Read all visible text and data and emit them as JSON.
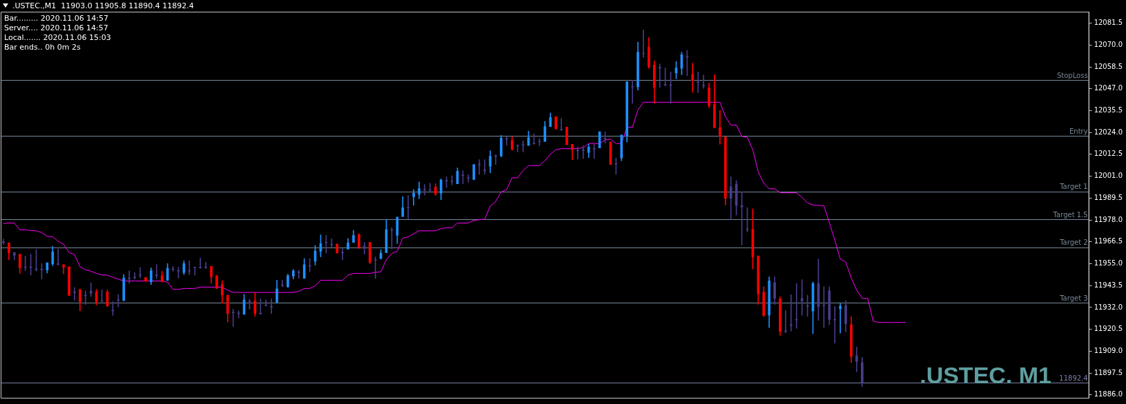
{
  "chart_data": {
    "type": "candlestick",
    "title": ".USTEC.,M1  11903.0 11905.8 11890.4 11892.4",
    "annotations": [
      "Bar......... 2020.11.06 14:57",
      "Server.... 2020.11.06 14:57",
      "Local....... 2020.11.06 15:03",
      "Bar ends.. 0h 0m 2s",
      ".USTEC. M1"
    ],
    "categories": [
      null,
      null,
      null,
      null,
      null,
      null,
      null,
      null,
      null,
      null,
      null,
      null,
      null,
      null,
      null,
      null,
      null,
      null,
      null,
      null,
      null,
      null,
      null,
      null,
      null,
      null,
      null,
      null,
      null,
      null,
      null,
      null,
      null,
      null,
      null,
      null,
      null,
      null,
      null,
      null,
      null,
      null,
      null,
      null,
      null,
      null,
      null,
      null,
      null,
      null,
      null,
      null,
      null,
      null,
      null,
      null,
      null,
      null,
      null,
      null,
      null,
      null,
      null,
      null,
      null,
      null,
      null,
      null,
      null,
      null,
      null,
      null,
      null,
      null,
      null,
      null,
      null,
      null,
      null,
      null,
      null,
      null,
      null,
      null,
      null,
      null,
      null,
      null,
      null,
      null,
      null,
      null,
      null,
      null,
      null,
      null,
      null,
      null,
      null,
      null,
      null,
      null,
      null,
      null,
      null,
      null,
      null,
      null,
      null,
      null,
      null,
      null,
      null,
      null,
      null,
      null,
      null,
      null,
      null,
      null,
      null,
      null,
      null,
      null,
      null,
      null,
      null,
      null,
      null,
      null,
      null,
      null,
      null,
      null,
      null,
      null,
      null,
      null,
      null,
      null,
      null,
      null,
      null,
      null,
      null,
      null,
      null,
      null,
      null,
      null,
      null,
      null,
      null,
      null,
      null,
      null,
      null,
      null,
      null,
      null,
      null,
      null,
      null,
      null,
      null,
      null,
      null,
      null,
      null,
      null,
      null,
      null,
      null,
      null,
      null,
      null,
      null,
      null,
      null,
      null,
      null,
      null,
      null,
      null,
      null,
      null,
      null,
      null,
      null,
      null,
      null,
      null,
      null,
      null,
      null,
      null,
      null,
      null,
      null
    ],
    "series": [
      {
        "type": "candlestick",
        "color": "#483d8b",
        "colors": [
          "#483d8b",
          "#ff0000",
          "#483d8b",
          "#ff0000",
          "#483d8b",
          "#483d8b",
          "#483d8b",
          "#483d8b",
          "#1e90ff",
          "#1e90ff",
          "#483d8b",
          "#ff0000",
          "#ff0000",
          "#483d8b",
          "#ff0000",
          "#483d8b",
          "#483d8b",
          "#ff0000",
          "#483d8b",
          "#ff0000",
          "#483d8b",
          "#483d8b",
          "#1e90ff",
          "#483d8b",
          "#483d8b",
          "#483d8b",
          "#ff0000",
          "#1e90ff",
          "#483d8b",
          "#ff0000",
          "#1e90ff",
          "#483d8b",
          "#483d8b",
          "#1e90ff",
          "#483d8b",
          "#483d8b",
          "#483d8b",
          "#483d8b",
          "#ff0000",
          "#ff0000",
          "#ff0000",
          "#ff0000",
          "#483d8b",
          "#483d8b",
          "#1e90ff",
          "#483d8b",
          "#ff0000",
          "#483d8b",
          "#483d8b",
          "#483d8b",
          "#1e90ff",
          "#483d8b",
          "#1e90ff",
          "#1e90ff",
          "#483d8b",
          "#1e90ff",
          "#483d8b",
          "#1e90ff",
          "#1e90ff",
          "#483d8b",
          "#483d8b",
          "#ff0000",
          "#483d8b",
          "#1e90ff",
          "#1e90ff",
          "#ff0000",
          "#483d8b",
          "#ff0000",
          "#483d8b",
          "#1e90ff",
          "#1e90ff",
          "#483d8b",
          "#1e90ff",
          "#1e90ff",
          "#483d8b",
          "#1e90ff",
          "#1e90ff",
          "#483d8b",
          "#483d8b",
          "#ff0000",
          "#1e90ff",
          "#483d8b",
          "#483d8b",
          "#1e90ff",
          "#483d8b",
          "#483d8b",
          "#1e90ff",
          "#483d8b",
          "#483d8b",
          "#1e90ff",
          "#483d8b",
          "#1e90ff",
          "#483d8b",
          "#ff0000",
          "#483d8b",
          "#483d8b",
          "#1e90ff",
          "#483d8b",
          "#483d8b",
          "#1e90ff",
          "#1e90ff",
          "#ff0000",
          "#483d8b",
          "#ff0000",
          "#ff0000",
          "#483d8b",
          "#483d8b",
          "#1e90ff",
          "#483d8b",
          "#1e90ff",
          "#483d8b",
          "#ff0000",
          "#483d8b",
          "#1e90ff",
          "#1e90ff",
          "#483d8b",
          "#1e90ff",
          "#483d8b",
          "#ff0000",
          "#ff0000",
          "#483d8b",
          "#483d8b",
          "#483d8b",
          "#1e90ff",
          "#1e90ff",
          "#483d8b",
          "#ff0000",
          "#483d8b",
          "#483d8b",
          "#ff0000",
          "#ff0000",
          "#ff0000",
          "#ff0000",
          "#483d8b",
          "#483d8b",
          "#483d8b",
          "#483d8b",
          "#ff0000",
          "#ff0000",
          "#ff0000",
          "#1e90ff",
          "#483d8b",
          "#ff0000",
          "#483d8b",
          "#483d8b",
          "#483d8b",
          "#483d8b",
          "#483d8b",
          "#1e90ff",
          "#483d8b",
          "#483d8b",
          "#483d8b",
          "#483d8b",
          "#1e90ff",
          "#483d8b",
          "#ff0000",
          "#483d8b",
          "#483d8b",
          null,
          null,
          null,
          null,
          null,
          null,
          null,
          null,
          null,
          null,
          null,
          null,
          null,
          null,
          null,
          null,
          null,
          null,
          null,
          null,
          null,
          null,
          null,
          null,
          null,
          null,
          null,
          null,
          null,
          null,
          null,
          null,
          null,
          null,
          null,
          null,
          null,
          null,
          null,
          null,
          null
        ],
        "ohlc": [
          [
            11966.5,
            11967.9,
            11965.2,
            11966.0
          ],
          [
            11965.9,
            11966.0,
            11957.1,
            11960.8
          ],
          [
            11960.9,
            11960.9,
            11957.1,
            11959.4
          ],
          [
            11960.0,
            11960.0,
            11949.9,
            11952.8
          ],
          [
            11953.2,
            11959.0,
            11951.4,
            11953.0
          ],
          [
            11953.0,
            11960.1,
            11949.0,
            11953.1
          ],
          [
            11952.0,
            11962.5,
            11951.1,
            11952.2
          ],
          [
            11952.0,
            11955.1,
            11946.9,
            11951.8
          ],
          [
            11951.7,
            11955.5,
            11950.1,
            11955.5
          ],
          [
            11954.9,
            11964.2,
            11954.0,
            11961.3
          ],
          [
            11955.0,
            11962.7,
            11954.3,
            11954.6
          ],
          [
            11954.4,
            11954.6,
            11949.7,
            11953.2
          ],
          [
            11953.4,
            11953.4,
            11938.3,
            11938.3
          ],
          [
            11939.8,
            11942.5,
            11935.7,
            11939.8
          ],
          [
            11941.5,
            11941.5,
            11930.2,
            11935.0
          ],
          [
            11938.1,
            11940.6,
            11933.6,
            11938.3
          ],
          [
            11939.5,
            11945.0,
            11937.7,
            11940.6
          ],
          [
            11940.1,
            11941.5,
            11933.3,
            11935.0
          ],
          [
            11935.5,
            11941.3,
            11935.0,
            11935.2
          ],
          [
            11940.1,
            11941.3,
            11932.5,
            11932.8
          ],
          [
            11930.5,
            11935.1,
            11927.8,
            11930.2
          ],
          [
            11935.7,
            11938.8,
            11932.2,
            11935.9
          ],
          [
            11935.6,
            11949.3,
            11935.6,
            11947.5
          ],
          [
            11947.1,
            11951.3,
            11944.7,
            11947.3
          ],
          [
            11947.6,
            11950.4,
            11947.0,
            11947.8
          ],
          [
            11949.0,
            11953.0,
            11947.6,
            11948.9
          ],
          [
            11947.8,
            11947.8,
            11945.8,
            11945.8
          ],
          [
            11945.5,
            11952.8,
            11944.1,
            11951.3
          ],
          [
            11948.7,
            11954.6,
            11947.2,
            11948.8
          ],
          [
            11948.7,
            11951.1,
            11945.3,
            11945.8
          ],
          [
            11946.2,
            11955.1,
            11946.2,
            11952.6
          ],
          [
            11952.0,
            11953.6,
            11951.1,
            11951.9
          ],
          [
            11951.3,
            11953.2,
            11947.4,
            11951.1
          ],
          [
            11950.3,
            11956.5,
            11949.3,
            11955.1
          ],
          [
            11951.2,
            11956.5,
            11949.3,
            11951.1
          ],
          [
            11953.0,
            11953.2,
            11949.0,
            11952.9
          ],
          [
            11952.8,
            11958.0,
            11952.5,
            11952.8
          ],
          [
            11953.2,
            11955.7,
            11952.5,
            11953.0
          ],
          [
            11953.6,
            11953.6,
            11944.7,
            11948.2
          ],
          [
            11948.7,
            11948.7,
            11942.0,
            11942.0
          ],
          [
            11943.9,
            11946.1,
            11934.2,
            11938.5
          ],
          [
            11938.5,
            11938.5,
            11924.3,
            11928.8
          ],
          [
            11929.2,
            11931.1,
            11922.0,
            11929.3
          ],
          [
            11928.8,
            11930.2,
            11926.4,
            11928.7
          ],
          [
            11928.4,
            11938.9,
            11928.4,
            11936.0
          ],
          [
            11935.0,
            11936.3,
            11931.1,
            11935.1
          ],
          [
            11935.5,
            11939.8,
            11927.3,
            11928.8
          ],
          [
            11929.0,
            11936.5,
            11928.4,
            11928.6
          ],
          [
            11933.2,
            11936.0,
            11932.8,
            11932.9
          ],
          [
            11932.4,
            11936.5,
            11928.8,
            11932.2
          ],
          [
            11934.8,
            11946.4,
            11934.2,
            11941.8
          ],
          [
            11943.5,
            11946.4,
            11942.9,
            11943.6
          ],
          [
            11942.9,
            11949.5,
            11942.5,
            11948.7
          ],
          [
            11948.5,
            11952.0,
            11947.0,
            11951.3
          ],
          [
            11950.5,
            11951.6,
            11947.3,
            11950.3
          ],
          [
            11947.3,
            11957.7,
            11947.3,
            11954.5
          ],
          [
            11953.6,
            11957.7,
            11950.8,
            11953.7
          ],
          [
            11956.3,
            11964.6,
            11954.3,
            11961.7
          ],
          [
            11961.5,
            11970.2,
            11958.6,
            11965.6
          ],
          [
            11965.9,
            11969.9,
            11960.6,
            11966.0
          ],
          [
            11965.0,
            11968.1,
            11963.8,
            11964.9
          ],
          [
            11965.2,
            11965.5,
            11960.4,
            11960.7
          ],
          [
            11960.9,
            11962.9,
            11957.1,
            11960.7
          ],
          [
            11962.7,
            11968.3,
            11962.7,
            11965.9
          ],
          [
            11966.2,
            11972.6,
            11966.2,
            11969.9
          ],
          [
            11970.2,
            11970.8,
            11962.9,
            11963.6
          ],
          [
            11964.1,
            11966.2,
            11960.1,
            11964.0
          ],
          [
            11966.2,
            11966.2,
            11955.1,
            11955.7
          ],
          [
            11956.8,
            11958.6,
            11947.3,
            11956.9
          ],
          [
            11957.8,
            11962.4,
            11957.4,
            11960.6
          ],
          [
            11960.8,
            11978.4,
            11960.8,
            11972.9
          ],
          [
            11972.5,
            11974.0,
            11962.7,
            11972.6
          ],
          [
            11969.9,
            11979.5,
            11965.6,
            11979.5
          ],
          [
            11979.8,
            11990.3,
            11979.8,
            11984.4
          ],
          [
            11984.4,
            11990.9,
            11978.4,
            11984.3
          ],
          [
            11990.2,
            11994.0,
            11985.7,
            11992.1
          ],
          [
            11991.5,
            11998.0,
            11989.2,
            11994.5
          ],
          [
            11993.7,
            11996.7,
            11991.1,
            11993.7
          ],
          [
            11993.5,
            11997.3,
            11993.2,
            11993.5
          ],
          [
            11995.2,
            11997.0,
            11990.9,
            11991.7
          ],
          [
            11992.1,
            11999.6,
            11988.6,
            11999.0
          ],
          [
            11998.4,
            12000.7,
            11995.0,
            11998.5
          ],
          [
            11998.4,
            12001.3,
            11996.4,
            11998.2
          ],
          [
            11997.0,
            12005.4,
            11997.0,
            12003.6
          ],
          [
            12001.6,
            12003.9,
            11997.0,
            12001.3
          ],
          [
            12000.0,
            12001.8,
            11997.8,
            12000.3
          ],
          [
            11999.3,
            12007.3,
            11999.1,
            12007.1
          ],
          [
            12007.1,
            12009.7,
            12002.0,
            12007.0
          ],
          [
            12004.0,
            12009.7,
            12002.0,
            12003.9
          ],
          [
            12006.2,
            12014.4,
            12002.8,
            12011.5
          ],
          [
            12011.5,
            12012.3,
            12007.1,
            12011.4
          ],
          [
            12011.7,
            12022.5,
            12011.2,
            12021.0
          ],
          [
            12020.5,
            12021.7,
            12017.3,
            12020.6
          ],
          [
            12019.8,
            12021.9,
            12014.7,
            12015.2
          ],
          [
            12017.0,
            12017.5,
            12013.8,
            12017.1
          ],
          [
            12017.3,
            12019.6,
            12013.8,
            12017.2
          ],
          [
            12017.2,
            12024.8,
            12017.2,
            12021.3
          ],
          [
            12018.2,
            12023.3,
            12017.8,
            12018.1
          ],
          [
            12019.0,
            12020.9,
            12017.0,
            12019.0
          ],
          [
            12019.3,
            12029.8,
            12019.3,
            12027.1
          ],
          [
            12027.1,
            12034.3,
            12027.1,
            12031.8
          ],
          [
            12032.3,
            12032.3,
            12025.9,
            12025.9
          ],
          [
            12025.5,
            12031.4,
            12025.1,
            12025.3
          ],
          [
            12026.8,
            12026.8,
            12017.6,
            12017.6
          ],
          [
            12017.8,
            12017.8,
            12009.7,
            12014.9
          ],
          [
            12014.3,
            12016.3,
            12010.0,
            12014.3
          ],
          [
            12014.7,
            12017.0,
            12010.3,
            12014.5
          ],
          [
            12013.5,
            12017.8,
            12010.8,
            12016.3
          ],
          [
            12015.2,
            12017.8,
            12010.3,
            12015.3
          ],
          [
            12015.8,
            12024.4,
            12015.8,
            12024.4
          ],
          [
            12020.7,
            12024.4,
            12018.4,
            12020.7
          ],
          [
            12019.0,
            12019.0,
            12007.1,
            12007.1
          ],
          [
            12007.4,
            12010.5,
            12002.1,
            12007.3
          ],
          [
            12010.6,
            12022.7,
            12009.1,
            12022.7
          ],
          [
            12022.1,
            12050.7,
            12019.0,
            12050.7
          ],
          [
            12048.0,
            12051.5,
            12039.3,
            12048.2
          ],
          [
            12048.0,
            12071.5,
            12046.3,
            12066.3
          ],
          [
            12065.5,
            12078.0,
            12063.5,
            12065.4
          ],
          [
            12068.9,
            12073.9,
            12057.7,
            12058.5
          ],
          [
            12059.5,
            12061.6,
            12039.3,
            12047.7
          ],
          [
            12057.9,
            12060.0,
            12047.7,
            12057.9
          ],
          [
            12049.2,
            12057.9,
            12048.4,
            12049.0
          ],
          [
            12048.9,
            12055.8,
            12039.3,
            12048.7
          ],
          [
            12055.3,
            12061.4,
            12052.3,
            12057.9
          ],
          [
            12057.7,
            12066.3,
            12054.4,
            12064.9
          ],
          [
            12063.7,
            12067.2,
            12053.8,
            12063.6
          ],
          [
            12054.6,
            12060.5,
            12045.1,
            12051.4
          ],
          [
            12050.3,
            12055.8,
            12044.9,
            12050.3
          ],
          [
            12048.6,
            12054.2,
            12047.2,
            12048.6
          ],
          [
            12047.4,
            12050.0,
            12037.0,
            12038.1
          ],
          [
            12038.7,
            12054.4,
            12026.5,
            12026.5
          ],
          [
            12026.5,
            12035.6,
            12017.8,
            12022.1
          ],
          [
            12021.7,
            12021.7,
            11985.9,
            11989.4
          ],
          [
            11989.4,
            12000.7,
            11978.0,
            11995.4
          ],
          [
            11996.9,
            11998.7,
            11980.6,
            11985.6
          ],
          [
            11985.6,
            11992.8,
            11964.9,
            11984.9
          ],
          [
            11973.0,
            11984.5,
            11971.7,
            11972.9
          ],
          [
            11973.1,
            11983.8,
            11952.2,
            11958.6
          ],
          [
            11959.1,
            11959.1,
            11933.6,
            11939.2
          ],
          [
            11940.0,
            11942.9,
            11927.2,
            11927.8
          ],
          [
            11928.0,
            11948.1,
            11921.4,
            11946.0
          ],
          [
            11945.0,
            11948.1,
            11933.6,
            11936.8
          ],
          [
            11936.5,
            11937.6,
            11917.3,
            11919.4
          ],
          [
            11919.6,
            11930.3,
            11918.7,
            11919.4
          ],
          [
            11922.5,
            11938.8,
            11919.6,
            11922.9
          ],
          [
            11925.5,
            11944.6,
            11921.0,
            11925.4
          ],
          [
            11936.8,
            11946.6,
            11927.8,
            11935.3
          ],
          [
            11932.7,
            11938.5,
            11927.2,
            11932.6
          ],
          [
            11930.1,
            11945.4,
            11918.2,
            11944.6
          ],
          [
            11944.6,
            11957.4,
            11925.2,
            11932.4
          ],
          [
            11933.0,
            11942.9,
            11921.4,
            11933.0
          ],
          [
            11940.8,
            11942.9,
            11922.9,
            11925.7
          ],
          [
            11925.5,
            11932.6,
            11913.2,
            11925.4
          ],
          [
            11931.3,
            11934.2,
            11918.5,
            11932.7
          ],
          [
            11933.0,
            11935.6,
            11919.1,
            11923.4
          ],
          [
            11922.9,
            11927.2,
            11903.1,
            11906.3
          ],
          [
            11906.6,
            11911.2,
            11898.1,
            11903.6
          ],
          [
            11903.0,
            11905.8,
            11890.4,
            11892.4
          ],
          null,
          null,
          null,
          null,
          null,
          null,
          null,
          null,
          null,
          null,
          null,
          null,
          null,
          null,
          null,
          null,
          null,
          null,
          null,
          null,
          null,
          null,
          null,
          null,
          null,
          null,
          null,
          null,
          null,
          null,
          null,
          null,
          null,
          null,
          null,
          null,
          null,
          null,
          null,
          null,
          null
        ]
      },
      {
        "type": "line",
        "color": "#ff00ff",
        "values": [
          11976.1,
          11976.4,
          11976.4,
          11972.8,
          11972.8,
          11972.5,
          11972.3,
          11971.4,
          11969.4,
          11969.2,
          11966.8,
          11965.2,
          11960.9,
          11959.8,
          11953.4,
          11951.7,
          11951.1,
          11949.9,
          11949.1,
          11949.0,
          11947.8,
          11946.9,
          11945.9,
          11945.9,
          11945.9,
          11945.9,
          11945.9,
          11945.9,
          11945.9,
          11945.9,
          11945.3,
          11941.5,
          11941.5,
          11942.0,
          11942.0,
          11942.0,
          11942.7,
          11942.7,
          11942.7,
          11942.7,
          11942.7,
          11941.0,
          11939.9,
          11939.9,
          11939.9,
          11939.9,
          11939.9,
          11939.9,
          11939.9,
          11939.9,
          11939.9,
          11939.9,
          11939.9,
          11939.9,
          11940.5,
          11942.0,
          11942.0,
          11943.4,
          11946.3,
          11946.3,
          11946.3,
          11946.3,
          11946.3,
          11949.0,
          11949.9,
          11949.9,
          11949.9,
          11949.9,
          11950.5,
          11950.7,
          11957.1,
          11960.4,
          11961.5,
          11968.5,
          11969.1,
          11970.8,
          11972.3,
          11972.3,
          11972.3,
          11972.3,
          11973.5,
          11973.9,
          11973.9,
          11976.4,
          11976.4,
          11976.4,
          11977.8,
          11978.1,
          11978.4,
          11985.3,
          11987.7,
          11992.7,
          11994.0,
          12000.2,
          12000.2,
          12003.9,
          12006.6,
          12006.6,
          12006.6,
          12009.2,
          12012.6,
          12014.9,
          12015.5,
          12015.5,
          12015.5,
          12015.5,
          12016.1,
          12018.2,
          12018.2,
          12018.2,
          12020.1,
          12020.4,
          12018.2,
          12018.2,
          12026.8,
          12026.8,
          12035.8,
          12039.9,
          12039.9,
          12039.9,
          12039.9,
          12039.9,
          12039.9,
          12039.9,
          12039.9,
          12039.9,
          12039.9,
          12039.9,
          12039.9,
          12039.9,
          12039.9,
          12039.9,
          12032.3,
          12027.9,
          12027.9,
          12021.9,
          12021.5,
          12014.9,
          12003.3,
          11997.3,
          11994.4,
          11994.4,
          11992.4,
          11992.3,
          11992.3,
          11992.3,
          11989.9,
          11987.0,
          11985.9,
          11985.6,
          11985.6,
          11976.6,
          11967.3,
          11957.4,
          11955.9,
          11947.5,
          11941.1,
          11936.8,
          11936.8,
          11924.9,
          11924.1,
          11924.1,
          11924.1,
          11924.1,
          11924.1,
          11924.1,
          null,
          null,
          null,
          null,
          null,
          null,
          null,
          null,
          null,
          null,
          null,
          null,
          null,
          null,
          null,
          null,
          null,
          null,
          null,
          null,
          null,
          null,
          null,
          null,
          null,
          null,
          null,
          null,
          null,
          null,
          null,
          null,
          null
        ]
      }
    ],
    "ylim": [
      11884.5,
      12087.5
    ],
    "yticks": [
      {
        "value": 11886,
        "label": "11886.0"
      },
      11897.5,
      {
        "value": 11909,
        "label": "11909.0"
      },
      11920.5,
      {
        "value": 11932,
        "label": "11932.0"
      },
      11943.5,
      {
        "value": 11955,
        "label": "11955.0"
      },
      11966.5,
      {
        "value": 11978,
        "label": "11978.0"
      },
      11989.5,
      {
        "value": 12001,
        "label": "12001.0"
      },
      12012.5,
      {
        "value": 12024,
        "label": "12024.0"
      },
      12035.5,
      {
        "value": 12047,
        "label": "12047.0"
      },
      12058.5,
      {
        "value": 12070,
        "label": "12070.0"
      },
      12081.5
    ],
    "ref_lines": [
      {
        "axis": "y",
        "value": 12051.5,
        "label": "StopLoss",
        "color": "#778899"
      },
      {
        "axis": "y",
        "value": 12022.2,
        "label": "Entry",
        "color": "#778899"
      },
      {
        "axis": "y",
        "value": 11993.0,
        "label": "Target 1",
        "color": "#778899"
      },
      {
        "axis": "y",
        "value": 11978.3,
        "label": "Target 1.5",
        "color": "#778899"
      },
      {
        "axis": "y",
        "value": 11963.7,
        "label": "Target 2",
        "color": "#778899"
      },
      {
        "axis": "y",
        "value": 11934.4,
        "label": "Target 3",
        "color": "#778899"
      },
      {
        "axis": "y",
        "value": 11892.4,
        "label": "11892.4",
        "color": "#7b7fa8"
      }
    ],
    "tick_labels": "y"
  }
}
